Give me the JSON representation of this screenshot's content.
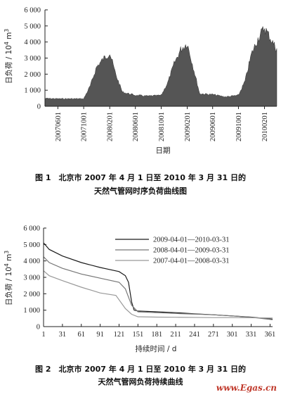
{
  "chart_data": [
    {
      "type": "area",
      "xlabel": "日期",
      "ylabel_main": "日负荷 / 10",
      "ylabel_exp": "4",
      "ylabel_unit": " m",
      "ylabel_sup": "3",
      "ylim": [
        0,
        6000
      ],
      "yticks": [
        "0",
        "1 000",
        "2 000",
        "3 000",
        "4 000",
        "5 000",
        "6 000"
      ],
      "xticks": [
        "20070601",
        "20071001",
        "20080201",
        "20080601",
        "20081001",
        "20090201",
        "20090601",
        "20091001",
        "20100201"
      ],
      "series": [
        {
          "x": [
            "20070401",
            "20070601",
            "20071001",
            "20071101",
            "20071201",
            "20080101",
            "20080201",
            "20080301",
            "20080401",
            "20080601",
            "20080801",
            "20081001",
            "20081101",
            "20081201",
            "20090101",
            "20090201",
            "20090301",
            "20090401",
            "20090601",
            "20090801",
            "20091001",
            "20091101",
            "20091201",
            "20100101",
            "20100201",
            "20100331"
          ],
          "values": [
            500,
            480,
            480,
            1300,
            2500,
            3000,
            3400,
            2000,
            900,
            700,
            650,
            700,
            1500,
            2700,
            3600,
            4000,
            2500,
            800,
            750,
            600,
            700,
            1600,
            3300,
            4300,
            5000,
            3600
          ]
        }
      ],
      "caption_line1": "图 1　北京市 2007 年 4 月 1 日至 2010 年 3 月 31 日的",
      "caption_line2": "天然气管网时序负荷曲线图"
    },
    {
      "type": "line",
      "xlabel": "持续时间 / d",
      "ylabel_main": "日负荷 / 10",
      "ylabel_exp": "4",
      "ylabel_unit": " m",
      "ylabel_sup": "3",
      "ylim": [
        0,
        6000
      ],
      "xlim": [
        1,
        365
      ],
      "yticks": [
        "0",
        "1 000",
        "2 000",
        "3 000",
        "4 000",
        "5 000",
        "6 000"
      ],
      "xticks": [
        "1",
        "31",
        "61",
        "91",
        "121",
        "151",
        "181",
        "211",
        "241",
        "271",
        "301",
        "331",
        "361"
      ],
      "series": [
        {
          "name": "2009-04-01—2010-03-31",
          "color": "#1a1a1a",
          "x": [
            1,
            10,
            31,
            61,
            91,
            121,
            131,
            136,
            141,
            145,
            151,
            181,
            211,
            241,
            271,
            301,
            331,
            365
          ],
          "values": [
            5100,
            4700,
            4300,
            3900,
            3600,
            3350,
            3100,
            2700,
            1500,
            1000,
            950,
            900,
            850,
            780,
            720,
            650,
            580,
            450
          ]
        },
        {
          "name": "2008-04-01—2009-03-31",
          "color": "#777777",
          "x": [
            1,
            10,
            31,
            61,
            91,
            121,
            131,
            141,
            151,
            181,
            211,
            241,
            271,
            301,
            331,
            365
          ],
          "values": [
            4250,
            3900,
            3550,
            3200,
            2950,
            2700,
            2300,
            1300,
            900,
            850,
            800,
            760,
            720,
            650,
            570,
            420
          ]
        },
        {
          "name": "2007-04-01—2008-03-31",
          "color": "#999999",
          "x": [
            1,
            10,
            31,
            61,
            91,
            116,
            131,
            141,
            151,
            181,
            211,
            241,
            271,
            301,
            331,
            365
          ],
          "values": [
            3400,
            3100,
            2800,
            2400,
            2050,
            1900,
            1100,
            750,
            600,
            580,
            570,
            560,
            550,
            550,
            540,
            520
          ]
        }
      ],
      "caption_line1": "图 2　北京市 2007 年 4 月 1 日至 2010 年 3 月 31 日的",
      "caption_line2": "天然气管网负荷持续曲线"
    }
  ],
  "watermark": "www.Egas.cn"
}
